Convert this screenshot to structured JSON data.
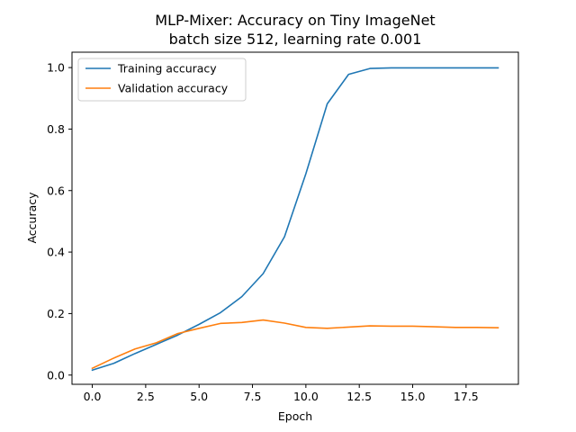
{
  "chart_data": {
    "type": "line",
    "title": "MLP-Mixer: Accuracy on Tiny ImageNet",
    "subtitle": "batch size 512, learning rate 0.001",
    "xlabel": "Epoch",
    "ylabel": "Accuracy",
    "xlim": [
      -0.95,
      19.95
    ],
    "ylim": [
      -0.03,
      1.05
    ],
    "xticks": [
      0.0,
      2.5,
      5.0,
      7.5,
      10.0,
      12.5,
      15.0,
      17.5
    ],
    "xtick_labels": [
      "0.0",
      "2.5",
      "5.0",
      "7.5",
      "10.0",
      "12.5",
      "15.0",
      "17.5"
    ],
    "yticks": [
      0.0,
      0.2,
      0.4,
      0.6,
      0.8,
      1.0
    ],
    "ytick_labels": [
      "0.0",
      "0.2",
      "0.4",
      "0.6",
      "0.8",
      "1.0"
    ],
    "grid": false,
    "legend_position": "top-left",
    "x": [
      0,
      1,
      2,
      3,
      4,
      5,
      6,
      7,
      8,
      9,
      10,
      11,
      12,
      13,
      14,
      15,
      16,
      17,
      18,
      19
    ],
    "series": [
      {
        "name": "Training accuracy",
        "color": "#1f77b4",
        "values": [
          0.016,
          0.038,
          0.07,
          0.1,
          0.13,
          0.165,
          0.203,
          0.255,
          0.33,
          0.45,
          0.655,
          0.882,
          0.978,
          0.997,
          0.999,
          0.999,
          0.999,
          0.999,
          0.999,
          0.999
        ]
      },
      {
        "name": "Validation accuracy",
        "color": "#ff7f0e",
        "values": [
          0.022,
          0.055,
          0.085,
          0.105,
          0.135,
          0.152,
          0.168,
          0.171,
          0.179,
          0.169,
          0.155,
          0.152,
          0.156,
          0.16,
          0.159,
          0.159,
          0.157,
          0.155,
          0.155,
          0.154
        ]
      }
    ]
  }
}
